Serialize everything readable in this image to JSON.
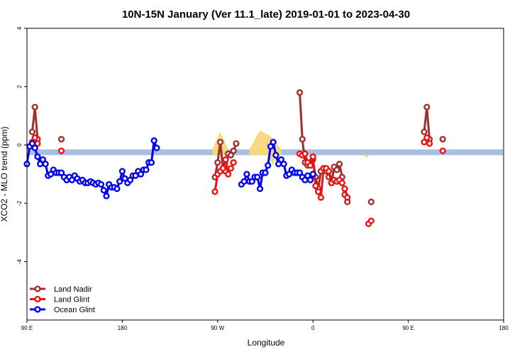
{
  "chart_data": {
    "type": "line",
    "title": "10N-15N January (Ver 11.1_late)   2019-01-01 to 2023-04-30",
    "xlabel": "Longitude",
    "ylabel": "XCO2 - MLO trend (ppm)",
    "xlim": [
      90,
      450
    ],
    "ylim": [
      -6,
      4
    ],
    "grid": false,
    "legend_position": "bottom-left",
    "x_ticks": [
      {
        "value": 90,
        "label": "90 E"
      },
      {
        "value": 180,
        "label": "180"
      },
      {
        "value": 270,
        "label": "90 W"
      },
      {
        "value": 360,
        "label": "0"
      },
      {
        "value": 450,
        "label": "90 E"
      },
      {
        "value": 540,
        "label": "180"
      }
    ],
    "y_ticks": [
      {
        "value": 4,
        "label": "4"
      },
      {
        "value": 2,
        "label": "2"
      },
      {
        "value": 0,
        "label": "0"
      },
      {
        "value": -2,
        "label": "-2"
      },
      {
        "value": -4,
        "label": "-4"
      }
    ],
    "x_domain_max": 540,
    "band": {
      "color": "#a9c0e4",
      "y_low": -0.35,
      "y_high": -0.15
    },
    "overlay_color": "#f6d878",
    "series": [
      {
        "name": "Land Nadir",
        "color": "#a03030",
        "segments": [
          [
            [
              95,
              0.45
            ],
            [
              97.5,
              1.3
            ],
            [
              100,
              0.2
            ]
          ],
          [
            [
              122.5,
              0.2
            ]
          ],
          [
            [
              267.5,
              -1.1
            ],
            [
              270,
              -0.6
            ],
            [
              272.5,
              0.1
            ],
            [
              275,
              -0.8
            ],
            [
              277.5,
              -0.9
            ],
            [
              280,
              -0.3
            ],
            [
              282.5,
              -0.35
            ],
            [
              285,
              -0.2
            ],
            [
              287.5,
              0.05
            ]
          ],
          [
            [
              347.5,
              1.8
            ],
            [
              350,
              0.2
            ],
            [
              352.5,
              -0.6
            ],
            [
              355,
              -0.7
            ],
            [
              357.5,
              -0.6
            ],
            [
              360,
              -0.5
            ],
            [
              362.5,
              -1.1
            ],
            [
              365,
              -1.5
            ],
            [
              367.5,
              -0.9
            ],
            [
              370,
              -0.8
            ],
            [
              372.5,
              -0.9
            ],
            [
              375,
              -1.1
            ],
            [
              377.5,
              -1.3
            ],
            [
              380,
              -0.75
            ],
            [
              382.5,
              -0.85
            ],
            [
              385,
              -0.65
            ],
            [
              387.5,
              -1.1
            ],
            [
              390,
              -1.7
            ],
            [
              392.5,
              -1.95
            ]
          ],
          [
            [
              415,
              -1.95
            ]
          ],
          [
            [
              465,
              0.45
            ],
            [
              467.5,
              1.3
            ],
            [
              470,
              0.2
            ]
          ],
          [
            [
              482.5,
              0.2
            ]
          ]
        ]
      },
      {
        "name": "Land Glint",
        "color": "#ee1111",
        "segments": [
          [
            [
              95,
              0.1
            ],
            [
              97.5,
              0.25
            ],
            [
              100,
              0.05
            ]
          ],
          [
            [
              122.5,
              -0.2
            ]
          ],
          [
            [
              267.5,
              -1.6
            ],
            [
              270,
              -1.0
            ],
            [
              272.5,
              -0.9
            ],
            [
              275,
              -0.8
            ],
            [
              277.5,
              -0.5
            ],
            [
              280,
              -1.0
            ],
            [
              282.5,
              -0.8
            ],
            [
              285,
              -0.6
            ]
          ],
          [
            [
              347.5,
              -0.3
            ],
            [
              350,
              -0.35
            ],
            [
              352.5,
              -0.3
            ],
            [
              355,
              -0.6
            ],
            [
              357.5,
              -0.7
            ],
            [
              360,
              -0.4
            ],
            [
              362.5,
              -1.4
            ],
            [
              365,
              -1.6
            ],
            [
              367.5,
              -1.8
            ],
            [
              370,
              -0.8
            ],
            [
              372.5,
              -0.8
            ],
            [
              375,
              -0.9
            ],
            [
              377.5,
              -1.3
            ],
            [
              380,
              -1.2
            ],
            [
              382.5,
              -1.25
            ],
            [
              385,
              -1.2
            ],
            [
              387.5,
              -1.3
            ],
            [
              390,
              -1.5
            ],
            [
              392.5,
              -1.8
            ]
          ],
          [
            [
              412.5,
              -2.7
            ],
            [
              415,
              -2.6
            ]
          ],
          [
            [
              465,
              0.1
            ],
            [
              467.5,
              0.25
            ],
            [
              470,
              0.05
            ]
          ],
          [
            [
              482.5,
              -0.2
            ]
          ]
        ]
      },
      {
        "name": "Ocean Glint",
        "color": "#0000ee",
        "segments": [
          [
            [
              90,
              -0.65
            ],
            [
              92.5,
              -0.05
            ],
            [
              95,
              0.05
            ],
            [
              97.5,
              -0.1
            ],
            [
              100,
              -0.4
            ],
            [
              102.5,
              -0.65
            ],
            [
              105,
              -0.5
            ],
            [
              107.5,
              -0.65
            ],
            [
              110,
              -1.05
            ],
            [
              112.5,
              -1.0
            ],
            [
              115,
              -0.85
            ],
            [
              117.5,
              -0.95
            ],
            [
              120,
              -0.95
            ],
            [
              122.5,
              -0.95
            ],
            [
              125,
              -1.1
            ],
            [
              127.5,
              -1.2
            ],
            [
              130,
              -1.1
            ],
            [
              132.5,
              -1.2
            ],
            [
              135,
              -1.05
            ],
            [
              137.5,
              -1.15
            ],
            [
              140,
              -1.25
            ],
            [
              142.5,
              -1.2
            ],
            [
              145,
              -1.3
            ],
            [
              147.5,
              -1.3
            ],
            [
              150,
              -1.25
            ],
            [
              152.5,
              -1.3
            ],
            [
              155,
              -1.35
            ],
            [
              157.5,
              -1.3
            ],
            [
              160,
              -1.35
            ],
            [
              162.5,
              -1.55
            ],
            [
              165,
              -1.75
            ],
            [
              167.5,
              -1.35
            ],
            [
              170,
              -1.45
            ],
            [
              172.5,
              -1.45
            ],
            [
              175,
              -1.5
            ],
            [
              177.5,
              -1.25
            ],
            [
              180,
              -0.9
            ],
            [
              182.5,
              -1.15
            ],
            [
              185,
              -1.3
            ],
            [
              187.5,
              -1.2
            ],
            [
              190,
              -1.05
            ],
            [
              192.5,
              -1.05
            ],
            [
              195,
              -0.9
            ],
            [
              197.5,
              -1.0
            ],
            [
              200,
              -0.85
            ],
            [
              202.5,
              -0.85
            ],
            [
              205,
              -0.6
            ],
            [
              207.5,
              -0.6
            ],
            [
              210,
              0.15
            ],
            [
              212.5,
              -0.1
            ]
          ],
          [
            [
              292.5,
              -1.35
            ],
            [
              295,
              -1.25
            ],
            [
              297.5,
              -1.0
            ],
            [
              300,
              -1.25
            ],
            [
              302.5,
              -1.25
            ],
            [
              305,
              -1.1
            ],
            [
              307.5,
              -1.1
            ],
            [
              310,
              -1.5
            ],
            [
              312.5,
              -0.95
            ],
            [
              315,
              -0.95
            ],
            [
              317.5,
              -0.7
            ],
            [
              320,
              -0.05
            ],
            [
              322.5,
              0.1
            ],
            [
              325,
              -0.35
            ],
            [
              327.5,
              -0.65
            ],
            [
              330,
              -0.5
            ],
            [
              332.5,
              -0.65
            ],
            [
              335,
              -1.05
            ],
            [
              337.5,
              -1.0
            ],
            [
              340,
              -0.85
            ],
            [
              342.5,
              -0.95
            ],
            [
              345,
              -0.95
            ],
            [
              347.5,
              -0.95
            ],
            [
              350,
              -1.1
            ],
            [
              352.5,
              -1.2
            ],
            [
              355,
              -1.05
            ],
            [
              357.5,
              -1.2
            ],
            [
              360,
              -1.0
            ]
          ]
        ]
      }
    ],
    "overlays": [
      {
        "x": [
          265,
          272.5,
          280
        ],
        "top": [
          -0.15,
          0.45,
          -0.15
        ]
      },
      {
        "x": [
          300,
          310,
          320,
          330
        ],
        "top": [
          -0.15,
          0.5,
          0.3,
          -0.15
        ]
      },
      {
        "x": [
          318,
          322,
          326
        ],
        "top": [
          -0.35,
          -0.7,
          -0.35
        ],
        "bottom_mode": true
      },
      {
        "x": [
          408,
          410.5,
          413
        ],
        "top": [
          -0.35,
          -0.45,
          -0.35
        ],
        "bottom_mode": true
      }
    ]
  }
}
